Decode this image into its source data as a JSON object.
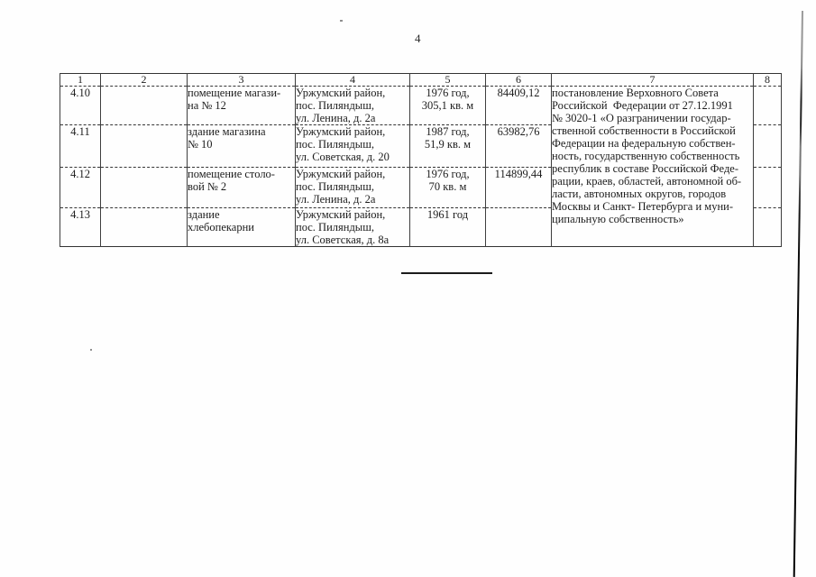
{
  "page": {
    "number": "4"
  },
  "colors": {
    "paper": "#fefefe",
    "ink": "#1c1c1c",
    "table_line": "#3e3e3e"
  },
  "table": {
    "headers": [
      "1",
      "2",
      "3",
      "4",
      "5",
      "6",
      "7",
      "8"
    ],
    "rows": [
      {
        "id": "4.10",
        "name_lines": [
          "помещение магази-",
          "на № 12"
        ],
        "location_lines": [
          "Уржумский район,",
          "пос. Пиляндыш,",
          "ул. Ленина, д. 2а"
        ],
        "year_area_lines": [
          "1976 год,",
          "305,1 кв. м"
        ],
        "value": "84409,12"
      },
      {
        "id": "4.11",
        "name_lines": [
          "здание магазина",
          "№ 10"
        ],
        "location_lines": [
          "Уржумский район,",
          "пос. Пиляндыш,",
          "ул. Советская, д. 20"
        ],
        "year_area_lines": [
          "1987 год,",
          "51,9 кв. м"
        ],
        "value": "63982,76"
      },
      {
        "id": "4.12",
        "name_lines": [
          "помещение столо-",
          "вой № 2"
        ],
        "location_lines": [
          "Уржумский район,",
          "пос. Пиляндыш,",
          "ул. Ленина, д. 2а"
        ],
        "year_area_lines": [
          "1976 год,",
          "70 кв. м"
        ],
        "value": "114899,44"
      },
      {
        "id": "4.13",
        "name_lines": [
          "здание",
          "хлебопекарни"
        ],
        "location_lines": [
          "Уржумский район,",
          "пос. Пиляндыш,",
          "ул. Советская, д. 8а"
        ],
        "year_area_lines": [
          "1961 год"
        ],
        "value": ""
      }
    ],
    "basis_lines": [
      "постановление Верховного Совета",
      "Российской  Федерации от 27.12.1991",
      "№ 3020-1 «О разграничении государ-",
      "ственной собственности в Российской",
      "Федерации на федеральную собствен-",
      "ность, государственную собственность",
      "республик в составе Российской Феде-",
      "рации, краев, областей, автономной об-",
      "ласти, автономных округов, городов",
      "Москвы и Санкт- Петербурга и муни-",
      "ципальную собственность»"
    ]
  }
}
